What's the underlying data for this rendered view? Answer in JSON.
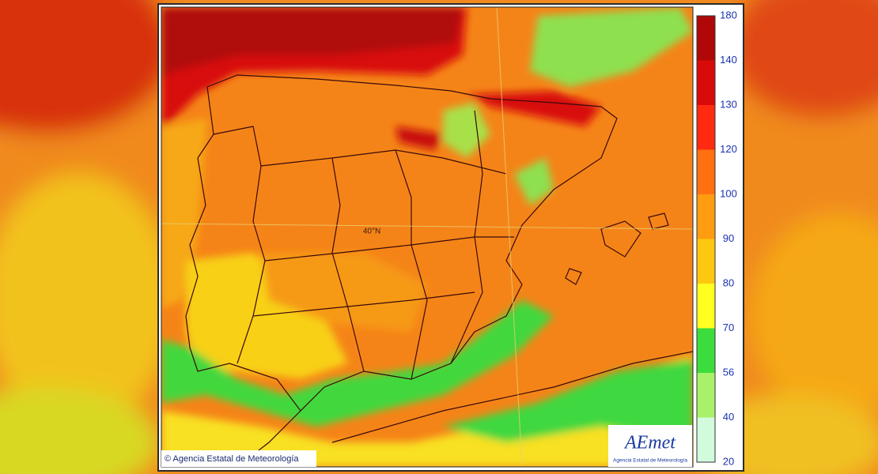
{
  "map": {
    "grid_label": "40°N"
  },
  "credit": "© Agencia Estatal de Meteorología",
  "logo": {
    "name": "AEmet",
    "subtitle": "Agencia Estatal de Meteorología"
  },
  "colorbar": {
    "ticks": [
      180,
      140,
      130,
      120,
      100,
      90,
      80,
      70,
      56,
      40,
      20
    ],
    "colors": [
      "#b00808",
      "#d80a0a",
      "#ff2a10",
      "#ff7010",
      "#ff9c10",
      "#ffc810",
      "#ffff20",
      "#3ddc3d",
      "#a8f26a",
      "#d2fadc"
    ]
  }
}
